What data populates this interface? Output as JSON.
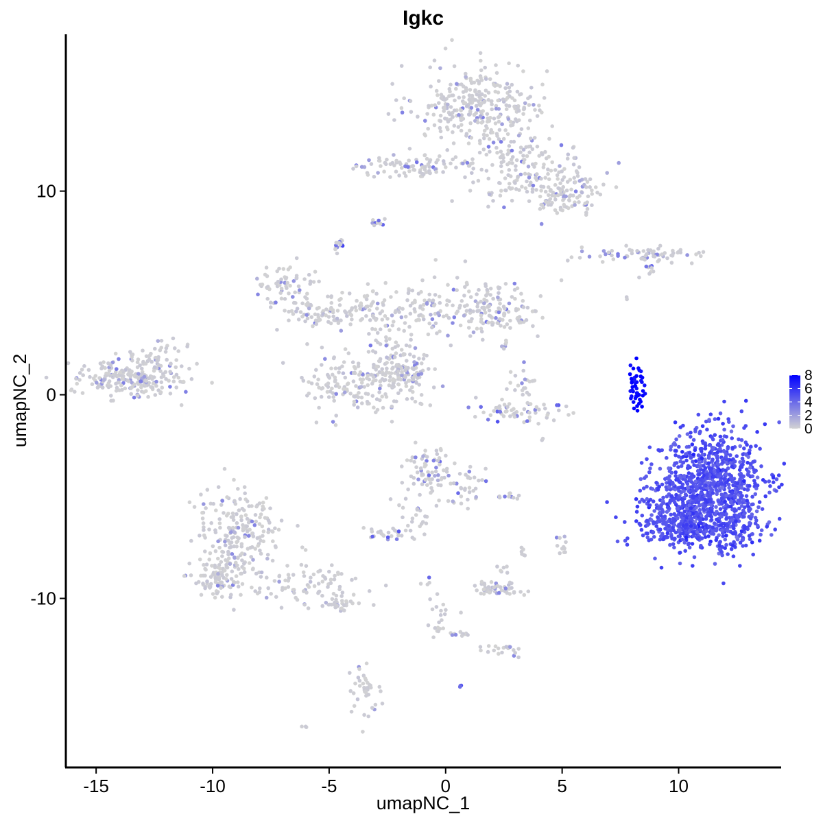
{
  "chart_data": {
    "type": "scatter",
    "title": "Igkc",
    "xlabel": "umapNC_1",
    "ylabel": "umapNC_2",
    "xlim": [
      -16.3,
      14.4
    ],
    "ylim": [
      -18.3,
      17.7
    ],
    "x_ticks": [
      -15,
      -10,
      -5,
      0,
      5,
      10
    ],
    "y_ticks": [
      -10,
      0,
      10
    ],
    "x_tick_labels": [
      "-15",
      "-10",
      "-5",
      "0",
      "5",
      "10"
    ],
    "y_tick_labels": [
      "-10",
      "0",
      "10"
    ],
    "grid": false,
    "color_scale": {
      "low_color": "#d3d3d3",
      "high_color": "#0000ff",
      "min": 0,
      "max": 8,
      "ticks": [
        0,
        2,
        4,
        6,
        8
      ],
      "tick_labels": [
        "0",
        "2",
        "4",
        "6",
        "8"
      ],
      "legend_position": "right"
    },
    "clusters": [
      {
        "cx": 1.5,
        "cy": 14.2,
        "sx": 1.4,
        "sy": 1.0,
        "n": 320,
        "expr": 0.3
      },
      {
        "cx": 3.5,
        "cy": 11.0,
        "sx": 1.3,
        "sy": 0.9,
        "n": 180,
        "expr": 0.4
      },
      {
        "cx": 5.2,
        "cy": 9.8,
        "sx": 0.7,
        "sy": 0.5,
        "n": 90,
        "expr": 0.4
      },
      {
        "cx": -2.0,
        "cy": 11.3,
        "sx": 1.0,
        "sy": 0.3,
        "n": 60,
        "expr": 1.0
      },
      {
        "cx": -0.5,
        "cy": 11.0,
        "sx": 0.6,
        "sy": 0.2,
        "n": 25,
        "expr": 0.5
      },
      {
        "cx": -3.0,
        "cy": 8.5,
        "sx": 0.15,
        "sy": 0.15,
        "n": 12,
        "expr": 1.5
      },
      {
        "cx": -4.6,
        "cy": 7.3,
        "sx": 0.15,
        "sy": 0.25,
        "n": 15,
        "expr": 2.5
      },
      {
        "cx": 8.5,
        "cy": 6.9,
        "sx": 1.2,
        "sy": 0.2,
        "n": 70,
        "expr": 1.0
      },
      {
        "cx": 8.8,
        "cy": 6.1,
        "sx": 0.2,
        "sy": 0.2,
        "n": 10,
        "expr": 2.0
      },
      {
        "cx": -7.0,
        "cy": 5.5,
        "sx": 0.6,
        "sy": 0.5,
        "n": 60,
        "expr": 0.5
      },
      {
        "cx": -5.5,
        "cy": 4.0,
        "sx": 0.9,
        "sy": 0.5,
        "n": 70,
        "expr": 0.3
      },
      {
        "cx": -3.5,
        "cy": 4.2,
        "sx": 0.9,
        "sy": 0.5,
        "n": 60,
        "expr": 0.3
      },
      {
        "cx": -1.0,
        "cy": 4.0,
        "sx": 1.1,
        "sy": 0.6,
        "n": 80,
        "expr": 0.3
      },
      {
        "cx": 1.5,
        "cy": 4.5,
        "sx": 1.1,
        "sy": 0.8,
        "n": 90,
        "expr": 0.3
      },
      {
        "cx": 2.3,
        "cy": 3.8,
        "sx": 0.9,
        "sy": 0.5,
        "n": 60,
        "expr": 0.8
      },
      {
        "cx": -2.5,
        "cy": 2.0,
        "sx": 0.5,
        "sy": 1.0,
        "n": 40,
        "expr": 0.5
      },
      {
        "cx": -4.0,
        "cy": 0.5,
        "sx": 1.1,
        "sy": 0.8,
        "n": 150,
        "expr": 0.3
      },
      {
        "cx": -1.8,
        "cy": 1.0,
        "sx": 0.6,
        "sy": 0.6,
        "n": 100,
        "expr": 0.3
      },
      {
        "cx": -1.7,
        "cy": 1.2,
        "sx": 0.5,
        "sy": 0.3,
        "n": 15,
        "expr": 1.0
      },
      {
        "cx": -13.5,
        "cy": 0.8,
        "sx": 1.1,
        "sy": 0.5,
        "n": 230,
        "expr": 0.3
      },
      {
        "cx": -12.2,
        "cy": 1.8,
        "sx": 0.6,
        "sy": 0.4,
        "n": 40,
        "expr": 0.3
      },
      {
        "cx": 3.3,
        "cy": -0.8,
        "sx": 1.1,
        "sy": 0.3,
        "n": 60,
        "expr": 2.0
      },
      {
        "cx": 3.3,
        "cy": 0.5,
        "sx": 0.4,
        "sy": 0.4,
        "n": 20,
        "expr": 0.3
      },
      {
        "cx": 8.2,
        "cy": 0.5,
        "sx": 0.18,
        "sy": 0.5,
        "n": 50,
        "expr": 8.0
      },
      {
        "cx": 11.5,
        "cy": -4.5,
        "sx": 1.1,
        "sy": 1.4,
        "n": 900,
        "expr": 5.0
      },
      {
        "cx": 9.5,
        "cy": -5.5,
        "sx": 0.6,
        "sy": 0.9,
        "n": 150,
        "expr": 5.0
      },
      {
        "cx": 10.8,
        "cy": -6.5,
        "sx": 1.3,
        "sy": 0.5,
        "n": 250,
        "expr": 5.0
      },
      {
        "cx": -0.8,
        "cy": -3.7,
        "sx": 0.6,
        "sy": 0.6,
        "n": 70,
        "expr": 1.0
      },
      {
        "cx": 0.8,
        "cy": -4.5,
        "sx": 0.5,
        "sy": 0.6,
        "n": 35,
        "expr": 0.8
      },
      {
        "cx": -1.2,
        "cy": -5.8,
        "sx": 0.4,
        "sy": 0.6,
        "n": 25,
        "expr": 0.3
      },
      {
        "cx": -2.5,
        "cy": -6.8,
        "sx": 0.4,
        "sy": 0.15,
        "n": 25,
        "expr": 1.8
      },
      {
        "cx": 2.8,
        "cy": -5.0,
        "sx": 0.3,
        "sy": 0.1,
        "n": 10,
        "expr": 0.3
      },
      {
        "cx": 5.0,
        "cy": -7.4,
        "sx": 0.15,
        "sy": 0.3,
        "n": 12,
        "expr": 0.3
      },
      {
        "cx": 3.3,
        "cy": -7.6,
        "sx": 0.1,
        "sy": 0.2,
        "n": 6,
        "expr": 0.3
      },
      {
        "cx": -8.8,
        "cy": -7.0,
        "sx": 0.9,
        "sy": 1.2,
        "n": 220,
        "expr": 0.3
      },
      {
        "cx": -9.7,
        "cy": -9.0,
        "sx": 0.6,
        "sy": 0.5,
        "n": 90,
        "expr": 0.3
      },
      {
        "cx": -6.0,
        "cy": -9.5,
        "sx": 1.2,
        "sy": 0.5,
        "n": 80,
        "expr": 0.3
      },
      {
        "cx": -4.5,
        "cy": -10.2,
        "sx": 0.4,
        "sy": 0.2,
        "n": 30,
        "expr": 0.3
      },
      {
        "cx": 2.1,
        "cy": -9.5,
        "sx": 0.6,
        "sy": 0.2,
        "n": 50,
        "expr": 0.3
      },
      {
        "cx": 2.4,
        "cy": -8.6,
        "sx": 0.1,
        "sy": 0.1,
        "n": 6,
        "expr": 0.8
      },
      {
        "cx": -0.8,
        "cy": -9.2,
        "sx": 0.1,
        "sy": 0.1,
        "n": 4,
        "expr": 1.5
      },
      {
        "cx": -0.3,
        "cy": -10.8,
        "sx": 0.3,
        "sy": 0.6,
        "n": 20,
        "expr": 0.3
      },
      {
        "cx": 0.6,
        "cy": -11.8,
        "sx": 0.3,
        "sy": 0.1,
        "n": 10,
        "expr": 0.3
      },
      {
        "cx": 2.1,
        "cy": -12.5,
        "sx": 0.5,
        "sy": 0.15,
        "n": 20,
        "expr": 0.3
      },
      {
        "cx": -3.5,
        "cy": -14.5,
        "sx": 0.3,
        "sy": 0.7,
        "n": 40,
        "expr": 0.3
      },
      {
        "cx": 0.6,
        "cy": -14.3,
        "sx": 0.05,
        "sy": 0.05,
        "n": 3,
        "expr": 3.5
      },
      {
        "cx": -6.1,
        "cy": -16.3,
        "sx": 0.08,
        "sy": 0.05,
        "n": 3,
        "expr": 0.3
      },
      {
        "cx": 7.8,
        "cy": 4.8,
        "sx": 0.05,
        "sy": 0.05,
        "n": 2,
        "expr": 0.3
      },
      {
        "cx": 2.5,
        "cy": 2.5,
        "sx": 0.1,
        "sy": 0.2,
        "n": 6,
        "expr": 0.3
      },
      {
        "cx": 4.2,
        "cy": -2.2,
        "sx": 0.05,
        "sy": 0.05,
        "n": 2,
        "expr": 0.3
      }
    ]
  }
}
